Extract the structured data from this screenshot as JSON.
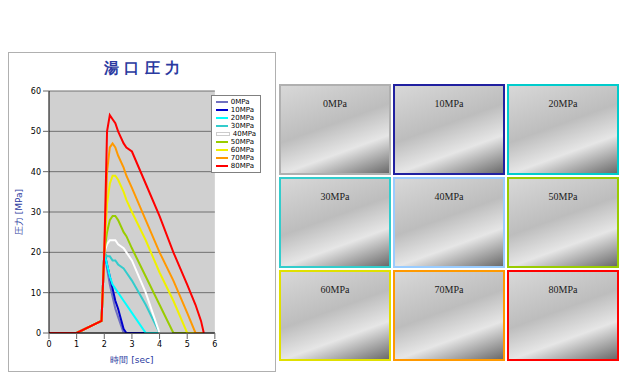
{
  "chart_data": {
    "type": "line",
    "title": "湯 口 圧 力",
    "x_label": "時間 [sec]",
    "y_label": "圧力 [MPa]",
    "x": [
      0,
      1,
      1.9,
      2,
      2.1,
      2.2,
      2.3,
      2.4,
      2.5,
      2.7,
      2.8,
      3,
      3.5,
      4,
      4.5,
      5,
      5.3,
      5.5,
      5.6
    ],
    "series": [
      {
        "name": "0MPa",
        "color": "#7070c0",
        "values": [
          0,
          0,
          3,
          20,
          16,
          12,
          9,
          6,
          4,
          0,
          0,
          0,
          0,
          0,
          0,
          0,
          0,
          0,
          0
        ]
      },
      {
        "name": "10MPa",
        "color": "#0000cc",
        "values": [
          0,
          0,
          3,
          20,
          17,
          14,
          11,
          8,
          6,
          1,
          0,
          0,
          0,
          0,
          0,
          0,
          0,
          0,
          0
        ]
      },
      {
        "name": "20MPa",
        "color": "#00ffff",
        "values": [
          0,
          0,
          3,
          20,
          17,
          14,
          12,
          11,
          10,
          8,
          7,
          5,
          0,
          0,
          0,
          0,
          0,
          0,
          0
        ]
      },
      {
        "name": "30MPa",
        "color": "#33cccc",
        "values": [
          0,
          0,
          3,
          20,
          19,
          19,
          18,
          18,
          17,
          16,
          15,
          13,
          7,
          0,
          0,
          0,
          0,
          0,
          0
        ]
      },
      {
        "name": "40MPa",
        "color": "#ffffff",
        "values": [
          0,
          0,
          3,
          20,
          22,
          23,
          23,
          23,
          22,
          21,
          20,
          18,
          10,
          0,
          0,
          0,
          0,
          0,
          0
        ]
      },
      {
        "name": "50MPa",
        "color": "#99cc00",
        "values": [
          0,
          0,
          3,
          20,
          25,
          28,
          29,
          29,
          28,
          25,
          24,
          21,
          14,
          7,
          0,
          0,
          0,
          0,
          0
        ]
      },
      {
        "name": "60MPa",
        "color": "#f0f000",
        "values": [
          0,
          0,
          3,
          20,
          32,
          37,
          39,
          39,
          38,
          35,
          33,
          30,
          23,
          15,
          8,
          0,
          0,
          0,
          0
        ]
      },
      {
        "name": "70MPa",
        "color": "#ff9900",
        "values": [
          0,
          0,
          3,
          20,
          40,
          46,
          47,
          46,
          44,
          41,
          39,
          36,
          28,
          20,
          13,
          5,
          0,
          0,
          0
        ]
      },
      {
        "name": "80MPa",
        "color": "#ff0000",
        "values": [
          0,
          0,
          3,
          20,
          50,
          54,
          53,
          52,
          50,
          47,
          46,
          45,
          37,
          29,
          20,
          12,
          7,
          3,
          0
        ]
      }
    ],
    "xlim": [
      0,
      6
    ],
    "xticks": [
      0,
      1,
      2,
      3,
      4,
      5,
      6
    ],
    "ylim": [
      0,
      60
    ],
    "yticks": [
      0,
      10,
      20,
      30,
      40,
      50,
      60
    ],
    "grid": true,
    "legend": "upper right"
  },
  "photos": [
    {
      "label": "0MPa",
      "color": "#b0b0b0"
    },
    {
      "label": "10MPa",
      "color": "#2020a0"
    },
    {
      "label": "20MPa",
      "color": "#00cccc"
    },
    {
      "label": "30MPa",
      "color": "#33cccc"
    },
    {
      "label": "40MPa",
      "color": "#99ccff"
    },
    {
      "label": "50MPa",
      "color": "#99cc00"
    },
    {
      "label": "60MPa",
      "color": "#e0e000"
    },
    {
      "label": "70MPa",
      "color": "#ff9900"
    },
    {
      "label": "80MPa",
      "color": "#ff0000"
    }
  ]
}
